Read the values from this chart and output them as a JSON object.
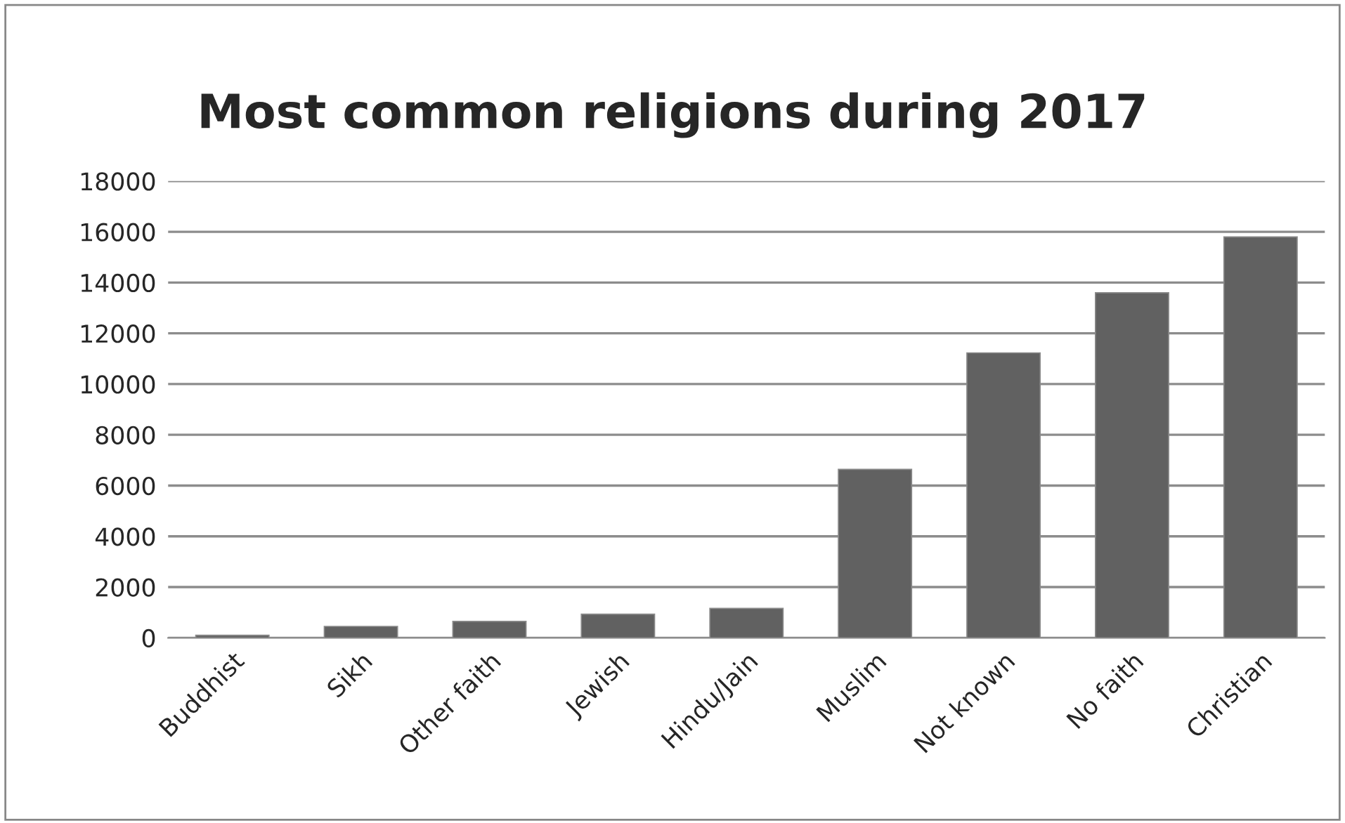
{
  "chart_data": {
    "type": "bar",
    "title": "Most common religions during 2017",
    "categories": [
      "Buddhist",
      "Sikh",
      "Other faith",
      "Jewish",
      "Hindu/Jain",
      "Muslim",
      "Not known",
      "No faith",
      "Christian"
    ],
    "values": [
      100,
      450,
      650,
      930,
      1160,
      6640,
      11230,
      13600,
      15800
    ],
    "color": "#616161",
    "ylim": [
      0,
      18000
    ],
    "yticks": [
      0,
      2000,
      4000,
      6000,
      8000,
      10000,
      12000,
      14000,
      16000,
      18000
    ],
    "grid": "y"
  }
}
